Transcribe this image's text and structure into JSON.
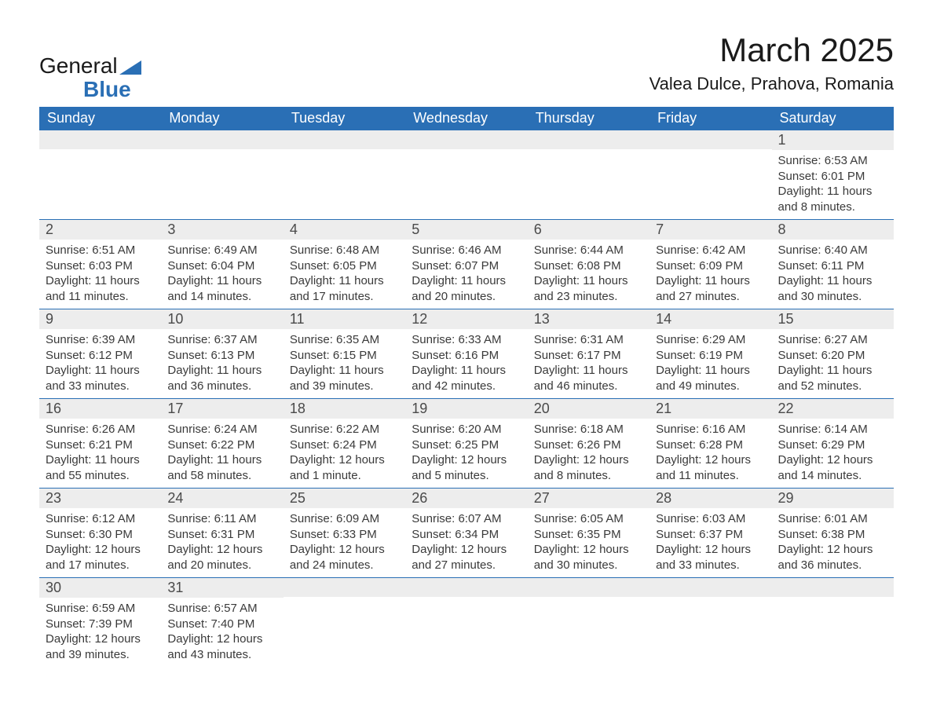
{
  "brand": {
    "name_part1": "General",
    "name_part2": "Blue"
  },
  "title": "March 2025",
  "location": "Valea Dulce, Prahova, Romania",
  "colors": {
    "header_bg": "#2a6fb5",
    "header_text": "#ffffff",
    "daynum_bg": "#ededed",
    "row_divider": "#2a6fb5",
    "body_bg": "#ffffff",
    "text_color": "#3a3a3a",
    "logo_accent": "#2a6fb5"
  },
  "typography": {
    "title_fontsize_pt": 32,
    "location_fontsize_pt": 16,
    "dayheader_fontsize_pt": 14,
    "daynum_fontsize_pt": 14,
    "body_fontsize_pt": 11
  },
  "day_headers": [
    "Sunday",
    "Monday",
    "Tuesday",
    "Wednesday",
    "Thursday",
    "Friday",
    "Saturday"
  ],
  "weeks": [
    [
      {
        "n": "",
        "sr": "",
        "ss": "",
        "dl": ""
      },
      {
        "n": "",
        "sr": "",
        "ss": "",
        "dl": ""
      },
      {
        "n": "",
        "sr": "",
        "ss": "",
        "dl": ""
      },
      {
        "n": "",
        "sr": "",
        "ss": "",
        "dl": ""
      },
      {
        "n": "",
        "sr": "",
        "ss": "",
        "dl": ""
      },
      {
        "n": "",
        "sr": "",
        "ss": "",
        "dl": ""
      },
      {
        "n": "1",
        "sr": "Sunrise: 6:53 AM",
        "ss": "Sunset: 6:01 PM",
        "dl": "Daylight: 11 hours and 8 minutes."
      }
    ],
    [
      {
        "n": "2",
        "sr": "Sunrise: 6:51 AM",
        "ss": "Sunset: 6:03 PM",
        "dl": "Daylight: 11 hours and 11 minutes."
      },
      {
        "n": "3",
        "sr": "Sunrise: 6:49 AM",
        "ss": "Sunset: 6:04 PM",
        "dl": "Daylight: 11 hours and 14 minutes."
      },
      {
        "n": "4",
        "sr": "Sunrise: 6:48 AM",
        "ss": "Sunset: 6:05 PM",
        "dl": "Daylight: 11 hours and 17 minutes."
      },
      {
        "n": "5",
        "sr": "Sunrise: 6:46 AM",
        "ss": "Sunset: 6:07 PM",
        "dl": "Daylight: 11 hours and 20 minutes."
      },
      {
        "n": "6",
        "sr": "Sunrise: 6:44 AM",
        "ss": "Sunset: 6:08 PM",
        "dl": "Daylight: 11 hours and 23 minutes."
      },
      {
        "n": "7",
        "sr": "Sunrise: 6:42 AM",
        "ss": "Sunset: 6:09 PM",
        "dl": "Daylight: 11 hours and 27 minutes."
      },
      {
        "n": "8",
        "sr": "Sunrise: 6:40 AM",
        "ss": "Sunset: 6:11 PM",
        "dl": "Daylight: 11 hours and 30 minutes."
      }
    ],
    [
      {
        "n": "9",
        "sr": "Sunrise: 6:39 AM",
        "ss": "Sunset: 6:12 PM",
        "dl": "Daylight: 11 hours and 33 minutes."
      },
      {
        "n": "10",
        "sr": "Sunrise: 6:37 AM",
        "ss": "Sunset: 6:13 PM",
        "dl": "Daylight: 11 hours and 36 minutes."
      },
      {
        "n": "11",
        "sr": "Sunrise: 6:35 AM",
        "ss": "Sunset: 6:15 PM",
        "dl": "Daylight: 11 hours and 39 minutes."
      },
      {
        "n": "12",
        "sr": "Sunrise: 6:33 AM",
        "ss": "Sunset: 6:16 PM",
        "dl": "Daylight: 11 hours and 42 minutes."
      },
      {
        "n": "13",
        "sr": "Sunrise: 6:31 AM",
        "ss": "Sunset: 6:17 PM",
        "dl": "Daylight: 11 hours and 46 minutes."
      },
      {
        "n": "14",
        "sr": "Sunrise: 6:29 AM",
        "ss": "Sunset: 6:19 PM",
        "dl": "Daylight: 11 hours and 49 minutes."
      },
      {
        "n": "15",
        "sr": "Sunrise: 6:27 AM",
        "ss": "Sunset: 6:20 PM",
        "dl": "Daylight: 11 hours and 52 minutes."
      }
    ],
    [
      {
        "n": "16",
        "sr": "Sunrise: 6:26 AM",
        "ss": "Sunset: 6:21 PM",
        "dl": "Daylight: 11 hours and 55 minutes."
      },
      {
        "n": "17",
        "sr": "Sunrise: 6:24 AM",
        "ss": "Sunset: 6:22 PM",
        "dl": "Daylight: 11 hours and 58 minutes."
      },
      {
        "n": "18",
        "sr": "Sunrise: 6:22 AM",
        "ss": "Sunset: 6:24 PM",
        "dl": "Daylight: 12 hours and 1 minute."
      },
      {
        "n": "19",
        "sr": "Sunrise: 6:20 AM",
        "ss": "Sunset: 6:25 PM",
        "dl": "Daylight: 12 hours and 5 minutes."
      },
      {
        "n": "20",
        "sr": "Sunrise: 6:18 AM",
        "ss": "Sunset: 6:26 PM",
        "dl": "Daylight: 12 hours and 8 minutes."
      },
      {
        "n": "21",
        "sr": "Sunrise: 6:16 AM",
        "ss": "Sunset: 6:28 PM",
        "dl": "Daylight: 12 hours and 11 minutes."
      },
      {
        "n": "22",
        "sr": "Sunrise: 6:14 AM",
        "ss": "Sunset: 6:29 PM",
        "dl": "Daylight: 12 hours and 14 minutes."
      }
    ],
    [
      {
        "n": "23",
        "sr": "Sunrise: 6:12 AM",
        "ss": "Sunset: 6:30 PM",
        "dl": "Daylight: 12 hours and 17 minutes."
      },
      {
        "n": "24",
        "sr": "Sunrise: 6:11 AM",
        "ss": "Sunset: 6:31 PM",
        "dl": "Daylight: 12 hours and 20 minutes."
      },
      {
        "n": "25",
        "sr": "Sunrise: 6:09 AM",
        "ss": "Sunset: 6:33 PM",
        "dl": "Daylight: 12 hours and 24 minutes."
      },
      {
        "n": "26",
        "sr": "Sunrise: 6:07 AM",
        "ss": "Sunset: 6:34 PM",
        "dl": "Daylight: 12 hours and 27 minutes."
      },
      {
        "n": "27",
        "sr": "Sunrise: 6:05 AM",
        "ss": "Sunset: 6:35 PM",
        "dl": "Daylight: 12 hours and 30 minutes."
      },
      {
        "n": "28",
        "sr": "Sunrise: 6:03 AM",
        "ss": "Sunset: 6:37 PM",
        "dl": "Daylight: 12 hours and 33 minutes."
      },
      {
        "n": "29",
        "sr": "Sunrise: 6:01 AM",
        "ss": "Sunset: 6:38 PM",
        "dl": "Daylight: 12 hours and 36 minutes."
      }
    ],
    [
      {
        "n": "30",
        "sr": "Sunrise: 6:59 AM",
        "ss": "Sunset: 7:39 PM",
        "dl": "Daylight: 12 hours and 39 minutes."
      },
      {
        "n": "31",
        "sr": "Sunrise: 6:57 AM",
        "ss": "Sunset: 7:40 PM",
        "dl": "Daylight: 12 hours and 43 minutes."
      },
      {
        "n": "",
        "sr": "",
        "ss": "",
        "dl": ""
      },
      {
        "n": "",
        "sr": "",
        "ss": "",
        "dl": ""
      },
      {
        "n": "",
        "sr": "",
        "ss": "",
        "dl": ""
      },
      {
        "n": "",
        "sr": "",
        "ss": "",
        "dl": ""
      },
      {
        "n": "",
        "sr": "",
        "ss": "",
        "dl": ""
      }
    ]
  ]
}
